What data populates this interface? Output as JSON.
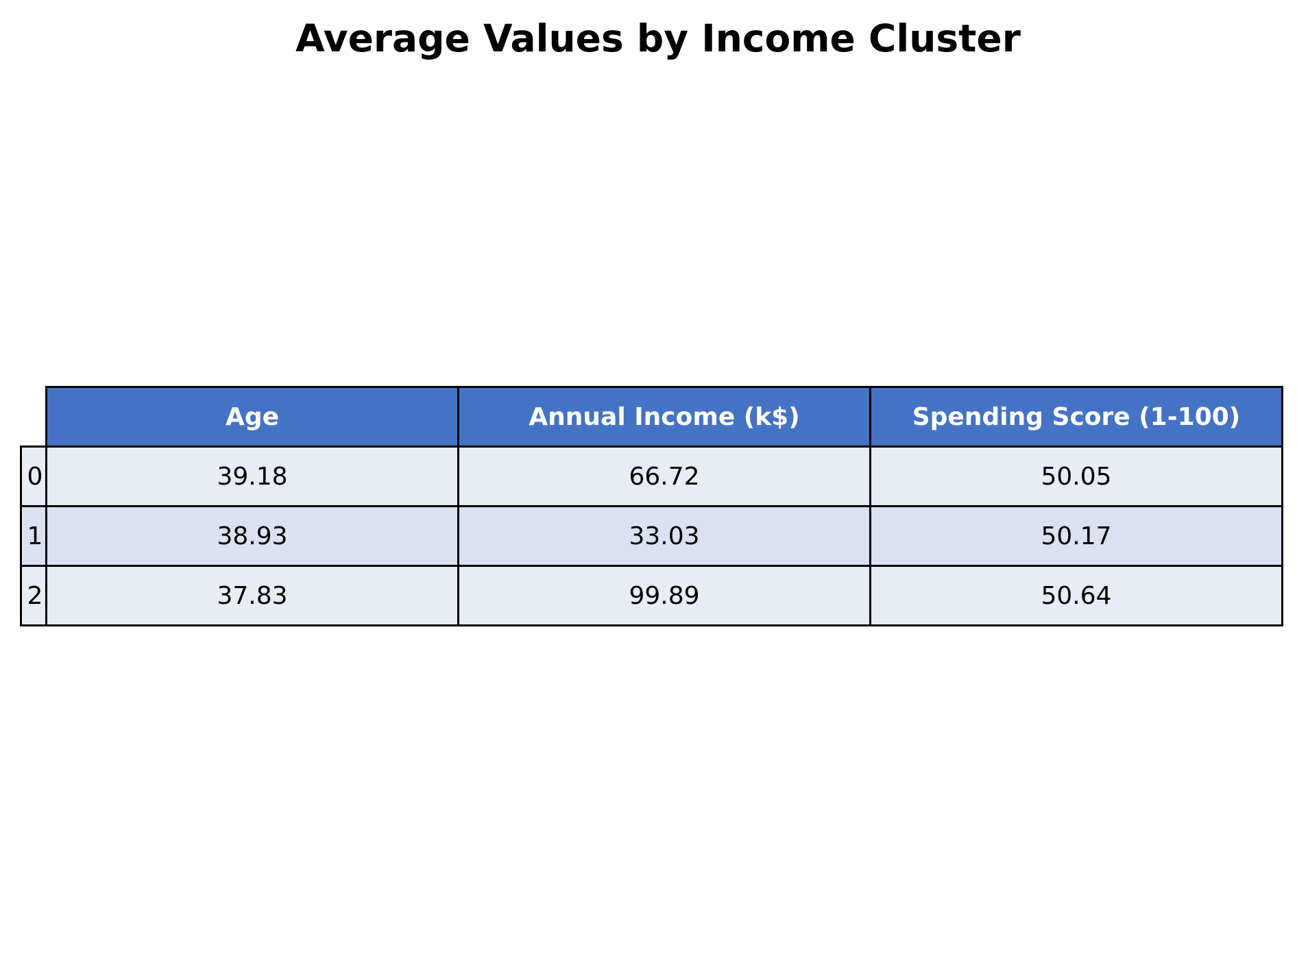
{
  "chart_data": {
    "type": "table",
    "title": "Average Values by Income Cluster",
    "columns": [
      "Age",
      "Annual Income (k$)",
      "Spending Score (1-100)"
    ],
    "rows": [
      {
        "index": "0",
        "values": [
          "39.18",
          "66.72",
          "50.05"
        ]
      },
      {
        "index": "1",
        "values": [
          "38.93",
          "33.03",
          "50.17"
        ]
      },
      {
        "index": "2",
        "values": [
          "37.83",
          "99.89",
          "50.64"
        ]
      }
    ],
    "colors": {
      "header_bg": "#4472c4",
      "header_text": "#ffffff",
      "row_even_bg": "#e8ecf3",
      "row_odd_bg": "#dbe1f2",
      "border": "#000000"
    }
  }
}
